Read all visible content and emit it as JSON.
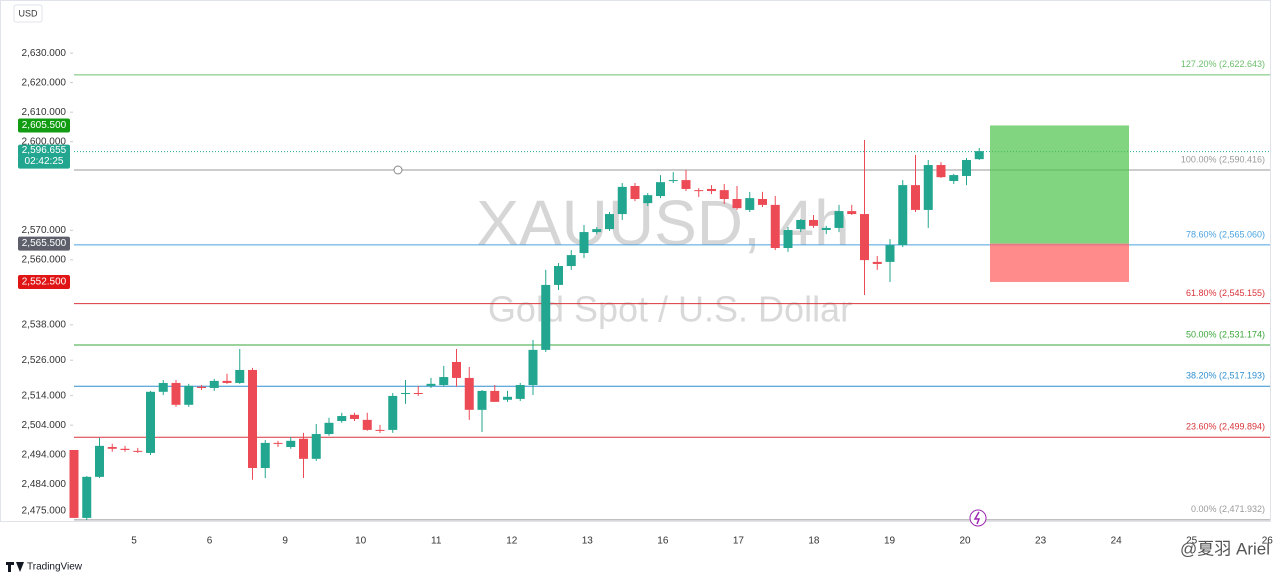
{
  "chart_data": {
    "type": "candlestick",
    "title": "XAUUSD, 4h",
    "subtitle": "Gold Spot / U.S. Dollar",
    "currency": "USD",
    "up_color": "#22a68f",
    "down_color": "#ec4a55",
    "ylim": [
      2468.5,
      2646.3
    ],
    "yticks": [
      {
        "value": 2475,
        "label": "2,475.000"
      },
      {
        "value": 2484,
        "label": "2,484.000"
      },
      {
        "value": 2494,
        "label": "2,494.000"
      },
      {
        "value": 2504,
        "label": "2,504.000"
      },
      {
        "value": 2514,
        "label": "2,514.000"
      },
      {
        "value": 2526,
        "label": "2,526.000"
      },
      {
        "value": 2538,
        "label": "2,538.000"
      },
      {
        "value": 2560,
        "label": "2,560.000"
      },
      {
        "value": 2570,
        "label": "2,570.000"
      },
      {
        "value": 2600,
        "label": "2,600.000"
      },
      {
        "value": 2610,
        "label": "2,610.000"
      },
      {
        "value": 2620,
        "label": "2,620.000"
      },
      {
        "value": 2630,
        "label": "2,630.000"
      }
    ],
    "x_labels": [
      "5",
      "6",
      "9",
      "10",
      "11",
      "12",
      "13",
      "16",
      "17",
      "18",
      "19",
      "20",
      "23",
      "24",
      "25",
      "26"
    ],
    "open": [
      2495.6,
      2472.6,
      2486.5,
      2496.6,
      2496.0,
      2495.3,
      2494.6,
      2515.3,
      2518.3,
      2510.9,
      2517.0,
      2516.6,
      2519.0,
      2518.3,
      2522.7,
      2489.5,
      2498.0,
      2496.6,
      2499.4,
      2492.6,
      2501.0,
      2505.4,
      2507.5,
      2505.8,
      2502.4,
      2502.4,
      2514.6,
      2514.9,
      2517.3,
      2517.6,
      2525.4,
      2520.0,
      2509.2,
      2515.6,
      2512.6,
      2512.9,
      2517.6,
      2529.5,
      2551.5,
      2557.9,
      2562.3,
      2569.4,
      2570.4,
      2575.5,
      2585.0,
      2579.2,
      2581.6,
      2586.7,
      2587.0,
      2583.6,
      2584.0,
      2583.6,
      2580.6,
      2576.9,
      2580.6,
      2578.6,
      2564.0,
      2570.4,
      2573.5,
      2570.1,
      2570.8,
      2576.5,
      2575.5,
      2559.3,
      2559.3,
      2565.0,
      2585.3,
      2576.9,
      2592.1,
      2586.7,
      2588.4,
      2594.1
    ],
    "high": [
      2495.6,
      2486.8,
      2499.7,
      2497.7,
      2497.0,
      2496.3,
      2515.6,
      2519.3,
      2519.3,
      2518.0,
      2517.6,
      2519.7,
      2521.4,
      2529.8,
      2523.4,
      2499.0,
      2498.7,
      2500.0,
      2501.4,
      2504.4,
      2506.5,
      2508.2,
      2508.2,
      2508.2,
      2504.1,
      2514.9,
      2519.3,
      2517.3,
      2520.0,
      2524.1,
      2529.8,
      2523.7,
      2515.9,
      2517.6,
      2515.6,
      2518.3,
      2532.9,
      2556.6,
      2558.9,
      2563.3,
      2571.8,
      2571.1,
      2576.2,
      2586.0,
      2586.0,
      2582.6,
      2588.7,
      2589.7,
      2590.4,
      2584.3,
      2585.3,
      2585.7,
      2585.0,
      2583.0,
      2583.0,
      2581.6,
      2571.1,
      2573.8,
      2575.2,
      2571.5,
      2578.6,
      2578.6,
      2600.6,
      2561.3,
      2567.0,
      2587.0,
      2595.5,
      2593.8,
      2593.1,
      2589.1,
      2594.5,
      2597.9
    ],
    "low": [
      2472.6,
      2471.9,
      2486.1,
      2495.0,
      2495.0,
      2494.6,
      2493.9,
      2514.2,
      2510.2,
      2510.2,
      2515.9,
      2515.6,
      2518.0,
      2518.0,
      2485.5,
      2486.1,
      2496.6,
      2496.0,
      2486.1,
      2491.9,
      2500.4,
      2504.8,
      2505.4,
      2502.1,
      2501.4,
      2501.4,
      2511.2,
      2513.9,
      2516.6,
      2517.0,
      2517.0,
      2505.8,
      2501.7,
      2511.9,
      2511.9,
      2512.2,
      2514.2,
      2528.8,
      2549.8,
      2556.6,
      2560.6,
      2568.7,
      2569.8,
      2573.5,
      2579.9,
      2578.2,
      2580.9,
      2586.0,
      2583.3,
      2581.3,
      2582.3,
      2578.9,
      2576.9,
      2576.2,
      2577.9,
      2563.3,
      2562.7,
      2569.4,
      2570.8,
      2568.7,
      2569.4,
      2575.2,
      2548.1,
      2556.6,
      2552.5,
      2564.3,
      2576.2,
      2570.8,
      2587.7,
      2585.7,
      2585.3,
      2593.8
    ],
    "close": [
      2472.6,
      2486.5,
      2497.0,
      2496.0,
      2495.6,
      2495.0,
      2515.3,
      2518.3,
      2510.9,
      2517.3,
      2516.6,
      2519.0,
      2518.3,
      2522.7,
      2489.5,
      2498.0,
      2497.7,
      2498.7,
      2492.6,
      2501.0,
      2504.8,
      2507.1,
      2506.1,
      2502.4,
      2502.1,
      2513.9,
      2514.9,
      2514.6,
      2518.0,
      2520.3,
      2520.0,
      2509.2,
      2515.6,
      2511.9,
      2513.6,
      2517.6,
      2529.5,
      2551.5,
      2557.9,
      2561.6,
      2569.4,
      2570.4,
      2575.5,
      2584.7,
      2580.6,
      2581.9,
      2586.3,
      2587.0,
      2584.0,
      2583.3,
      2583.3,
      2580.6,
      2577.5,
      2580.9,
      2578.6,
      2564.0,
      2570.1,
      2573.5,
      2571.5,
      2570.8,
      2576.5,
      2575.5,
      2559.9,
      2558.6,
      2565.0,
      2585.3,
      2576.9,
      2592.1,
      2588.0,
      2588.7,
      2593.8,
      2596.8
    ],
    "fib_levels": [
      {
        "label": "127.20% (2,622.643)",
        "value": 2622.643,
        "color": "#6cbf6c"
      },
      {
        "label": "100.00% (2,590.416)",
        "value": 2590.416,
        "color": "#9a9a9a"
      },
      {
        "label": "78.60% (2,565.060)",
        "value": 2565.06,
        "color": "#4aa3df"
      },
      {
        "label": "61.80% (2,545.155)",
        "value": 2545.155,
        "color": "#d9343a"
      },
      {
        "label": "50.00% (2,531.174)",
        "value": 2531.174,
        "color": "#3aa63a"
      },
      {
        "label": "38.20% (2,517.193)",
        "value": 2517.193,
        "color": "#2f8fd0"
      },
      {
        "label": "23.60% (2,499.894)",
        "value": 2499.894,
        "color": "#d9343a"
      },
      {
        "label": "0.00% (2,471.932)",
        "value": 2471.932,
        "color": "#9a9a9a"
      }
    ],
    "position": {
      "target": {
        "value": 2605.5,
        "label": "2,605.500",
        "color": "#129c12"
      },
      "entry": {
        "value": 2565.5,
        "label": "2,565.500",
        "color": "#5d606b"
      },
      "stop": {
        "value": 2552.5,
        "label": "2,552.500",
        "color": "#e01414"
      }
    },
    "last_price": {
      "value": 2596.655,
      "label": "2,596.655",
      "countdown": "02:42:25",
      "color": "#22a68f"
    }
  },
  "branding": {
    "logo": "TradingView",
    "watermark": "@夏羽 Ariel"
  }
}
